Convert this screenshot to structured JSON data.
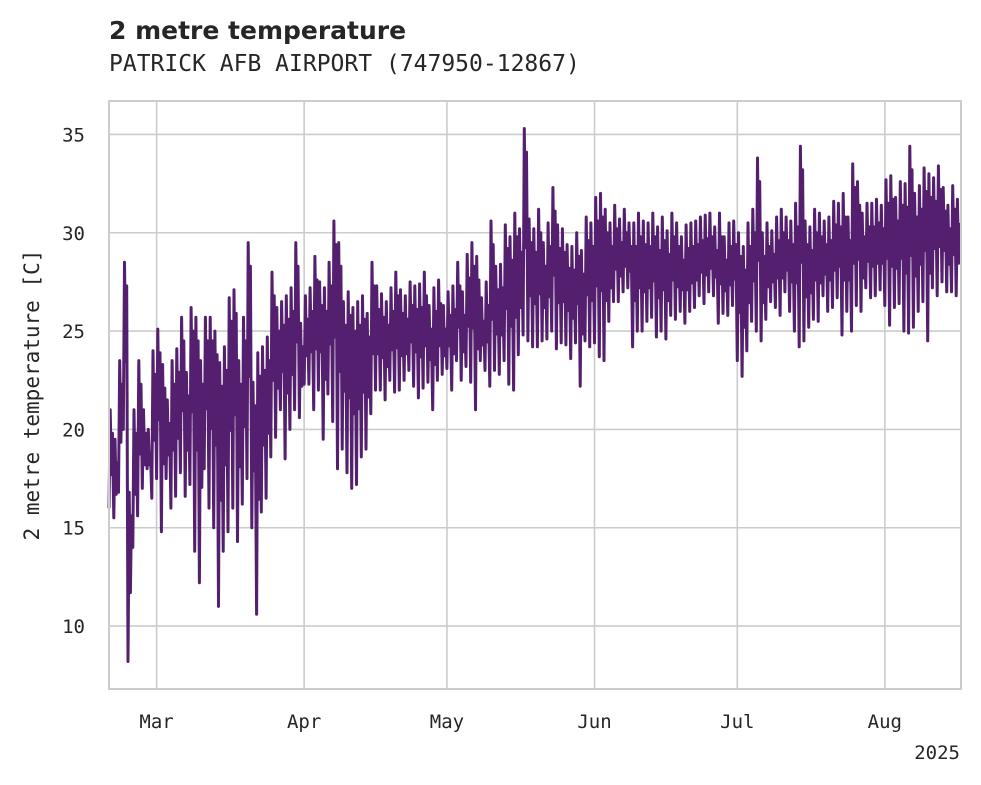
{
  "chart_data": {
    "type": "line",
    "title": "2 metre temperature",
    "subtitle": "PATRICK AFB AIRPORT (747950-12867)",
    "xlabel": "",
    "ylabel": "2 metre temperature [C]",
    "xlim": [
      "2025-02-19",
      "2025-08-17"
    ],
    "ylim": [
      6.8,
      36.7
    ],
    "yticks": [
      10,
      15,
      20,
      25,
      30,
      35
    ],
    "xticks": [
      {
        "date": "2025-03-01",
        "label": "Mar"
      },
      {
        "date": "2025-04-01",
        "label": "Apr"
      },
      {
        "date": "2025-05-01",
        "label": "May"
      },
      {
        "date": "2025-06-01",
        "label": "Jun"
      },
      {
        "date": "2025-07-01",
        "label": "Jul"
      },
      {
        "date": "2025-08-01",
        "label": "Aug"
      }
    ],
    "x_offset_label": "2025",
    "grid": true,
    "line_color": "#541f6e",
    "series": [
      {
        "name": "",
        "x": [
          "2025-02-19",
          "2025-02-20",
          "2025-02-21",
          "2025-02-22",
          "2025-02-23",
          "2025-02-24",
          "2025-02-25",
          "2025-02-26",
          "2025-02-27",
          "2025-02-28",
          "2025-03-01",
          "2025-03-02",
          "2025-03-03",
          "2025-03-04",
          "2025-03-05",
          "2025-03-06",
          "2025-03-07",
          "2025-03-08",
          "2025-03-09",
          "2025-03-10",
          "2025-03-11",
          "2025-03-12",
          "2025-03-13",
          "2025-03-14",
          "2025-03-15",
          "2025-03-16",
          "2025-03-17",
          "2025-03-18",
          "2025-03-19",
          "2025-03-20",
          "2025-03-21",
          "2025-03-22",
          "2025-03-23",
          "2025-03-24",
          "2025-03-25",
          "2025-03-26",
          "2025-03-27",
          "2025-03-28",
          "2025-03-29",
          "2025-03-30",
          "2025-03-31",
          "2025-04-01",
          "2025-04-02",
          "2025-04-03",
          "2025-04-04",
          "2025-04-05",
          "2025-04-06",
          "2025-04-07",
          "2025-04-08",
          "2025-04-09",
          "2025-04-10",
          "2025-04-11",
          "2025-04-12",
          "2025-04-13",
          "2025-04-14",
          "2025-04-15",
          "2025-04-16",
          "2025-04-17",
          "2025-04-18",
          "2025-04-19",
          "2025-04-20",
          "2025-04-21",
          "2025-04-22",
          "2025-04-23",
          "2025-04-24",
          "2025-04-25",
          "2025-04-26",
          "2025-04-27",
          "2025-04-28",
          "2025-04-29",
          "2025-04-30",
          "2025-05-01",
          "2025-05-02",
          "2025-05-03",
          "2025-05-04",
          "2025-05-05",
          "2025-05-06",
          "2025-05-07",
          "2025-05-08",
          "2025-05-09",
          "2025-05-10",
          "2025-05-11",
          "2025-05-12",
          "2025-05-13",
          "2025-05-14",
          "2025-05-15",
          "2025-05-16",
          "2025-05-17",
          "2025-05-18",
          "2025-05-19",
          "2025-05-20",
          "2025-05-21",
          "2025-05-22",
          "2025-05-23",
          "2025-05-24",
          "2025-05-25",
          "2025-05-26",
          "2025-05-27",
          "2025-05-28",
          "2025-05-29",
          "2025-05-30",
          "2025-05-31",
          "2025-06-01",
          "2025-06-02",
          "2025-06-03",
          "2025-06-04",
          "2025-06-05",
          "2025-06-06",
          "2025-06-07",
          "2025-06-08",
          "2025-06-09",
          "2025-06-10",
          "2025-06-11",
          "2025-06-12",
          "2025-06-13",
          "2025-06-14",
          "2025-06-15",
          "2025-06-16",
          "2025-06-17",
          "2025-06-18",
          "2025-06-19",
          "2025-06-20",
          "2025-06-21",
          "2025-06-22",
          "2025-06-23",
          "2025-06-24",
          "2025-06-25",
          "2025-06-26",
          "2025-06-27",
          "2025-06-28",
          "2025-06-29",
          "2025-06-30",
          "2025-07-01",
          "2025-07-02",
          "2025-07-03",
          "2025-07-04",
          "2025-07-05",
          "2025-07-06",
          "2025-07-07",
          "2025-07-08",
          "2025-07-09",
          "2025-07-10",
          "2025-07-11",
          "2025-07-12",
          "2025-07-13",
          "2025-07-14",
          "2025-07-15",
          "2025-07-16",
          "2025-07-17",
          "2025-07-18",
          "2025-07-19",
          "2025-07-20",
          "2025-07-21",
          "2025-07-22",
          "2025-07-23",
          "2025-07-24",
          "2025-07-25",
          "2025-07-26",
          "2025-07-27",
          "2025-07-28",
          "2025-07-29",
          "2025-07-30",
          "2025-07-31",
          "2025-08-01",
          "2025-08-02",
          "2025-08-03",
          "2025-08-04",
          "2025-08-05",
          "2025-08-06",
          "2025-08-07",
          "2025-08-08",
          "2025-08-09",
          "2025-08-10",
          "2025-08-11",
          "2025-08-12",
          "2025-08-13",
          "2025-08-14",
          "2025-08-15",
          "2025-08-16"
        ],
        "min": [
          16.0,
          15.5,
          16.8,
          20.0,
          8.2,
          14.0,
          15.6,
          17.0,
          18.0,
          16.5,
          17.5,
          14.8,
          17.5,
          16.0,
          16.6,
          17.8,
          16.6,
          17.2,
          13.8,
          12.2,
          18.0,
          16.0,
          15.0,
          11.0,
          13.8,
          14.8,
          16.0,
          14.3,
          16.2,
          17.5,
          15.0,
          10.6,
          15.8,
          16.5,
          18.6,
          19.6,
          21.0,
          18.5,
          20.0,
          21.0,
          20.6,
          22.3,
          22.3,
          21.0,
          22.0,
          19.5,
          21.8,
          20.4,
          18.0,
          19.0,
          17.8,
          17.0,
          17.2,
          18.6,
          19.0,
          20.8,
          22.0,
          22.0,
          21.5,
          22.5,
          21.9,
          22.0,
          22.5,
          23.0,
          22.2,
          21.6,
          22.1,
          22.4,
          21.0,
          22.5,
          22.8,
          23.1,
          22.0,
          23.5,
          22.5,
          23.2,
          22.4,
          21.0,
          23.5,
          23.0,
          22.2,
          23.0,
          22.8,
          23.5,
          22.3,
          22.0,
          23.8,
          24.8,
          24.5,
          24.2,
          24.2,
          24.5,
          24.6,
          25.0,
          24.1,
          24.4,
          24.3,
          23.6,
          24.4,
          22.2,
          24.5,
          24.2,
          24.4,
          23.7,
          23.5,
          25.5,
          26.5,
          26.5,
          27.0,
          27.2,
          24.2,
          25.0,
          25.0,
          25.5,
          25.7,
          24.7,
          25.0,
          24.6,
          25.8,
          25.6,
          26.0,
          25.4,
          26.0,
          26.2,
          26.8,
          26.4,
          27.0,
          26.8,
          25.4,
          25.9,
          25.8,
          26.3,
          23.5,
          22.7,
          24.0,
          25.5,
          25.0,
          24.5,
          25.6,
          26.5,
          26.2,
          25.8,
          27.0,
          26.0,
          25.0,
          24.2,
          24.5,
          25.2,
          25.6,
          25.5,
          26.8,
          26.0,
          26.2,
          26.7,
          24.8,
          26.0,
          25.0,
          26.3,
          26.0,
          27.2,
          26.7,
          26.8,
          27.1,
          26.3,
          25.3,
          26.2,
          26.4,
          25.0,
          24.9,
          25.2,
          26.0,
          26.5,
          24.5,
          27.2,
          26.8,
          27.5,
          27.0,
          27.0,
          26.8,
          27.0,
          27.3
        ],
        "max": [
          21.0,
          19.5,
          23.5,
          28.5,
          16.8,
          21.0,
          23.5,
          21.0,
          20.0,
          24.0,
          25.1,
          23.3,
          21.5,
          23.5,
          24.1,
          25.7,
          22.9,
          26.2,
          25.7,
          23.5,
          25.7,
          25.7,
          25.0,
          23.4,
          24.2,
          26.7,
          27.1,
          23.5,
          25.7,
          29.5,
          22.4,
          23.9,
          24.2,
          24.7,
          28.0,
          26.2,
          26.5,
          26.8,
          27.2,
          29.5,
          25.4,
          26.8,
          27.2,
          28.8,
          27.5,
          27.2,
          28.5,
          30.6,
          29.5,
          26.5,
          27.0,
          26.2,
          26.5,
          26.8,
          25.9,
          28.5,
          27.3,
          26.9,
          26.5,
          27.2,
          28.0,
          27.1,
          26.8,
          27.5,
          27.3,
          27.4,
          28.0,
          26.3,
          27.2,
          27.6,
          26.3,
          27.0,
          27.3,
          28.5,
          27.0,
          28.9,
          29.5,
          28.8,
          26.7,
          27.5,
          30.6,
          28.3,
          28.4,
          30.4,
          29.8,
          31.0,
          30.2,
          35.3,
          30.7,
          30.2,
          31.2,
          29.5,
          30.5,
          32.3,
          30.4,
          30.2,
          29.4,
          29.3,
          30.0,
          29.1,
          30.8,
          30.5,
          31.8,
          32.0,
          31.2,
          30.5,
          31.4,
          30.7,
          31.2,
          30.5,
          30.5,
          31.0,
          30.6,
          30.5,
          31.0,
          30.3,
          30.8,
          30.1,
          31.0,
          30.5,
          29.8,
          30.4,
          30.5,
          30.6,
          30.8,
          30.9,
          31.0,
          30.3,
          31.0,
          29.8,
          30.5,
          30.6,
          30.0,
          29.3,
          30.5,
          31.2,
          33.8,
          30.0,
          30.5,
          30.1,
          30.8,
          31.2,
          30.8,
          30.6,
          31.5,
          34.4,
          30.6,
          30.3,
          31.2,
          31.0,
          30.6,
          30.8,
          31.6,
          31.5,
          32.0,
          30.8,
          33.5,
          32.6,
          31.0,
          31.5,
          31.5,
          31.7,
          31.4,
          32.7,
          32.9,
          31.8,
          32.6,
          32.5,
          34.4,
          32.0,
          32.4,
          33.3,
          33.0,
          32.8,
          33.4,
          32.3,
          31.4,
          32.4,
          31.7,
          33.0,
          32.6,
          32.7,
          32.5,
          32.7,
          31.5
        ]
      }
    ]
  }
}
